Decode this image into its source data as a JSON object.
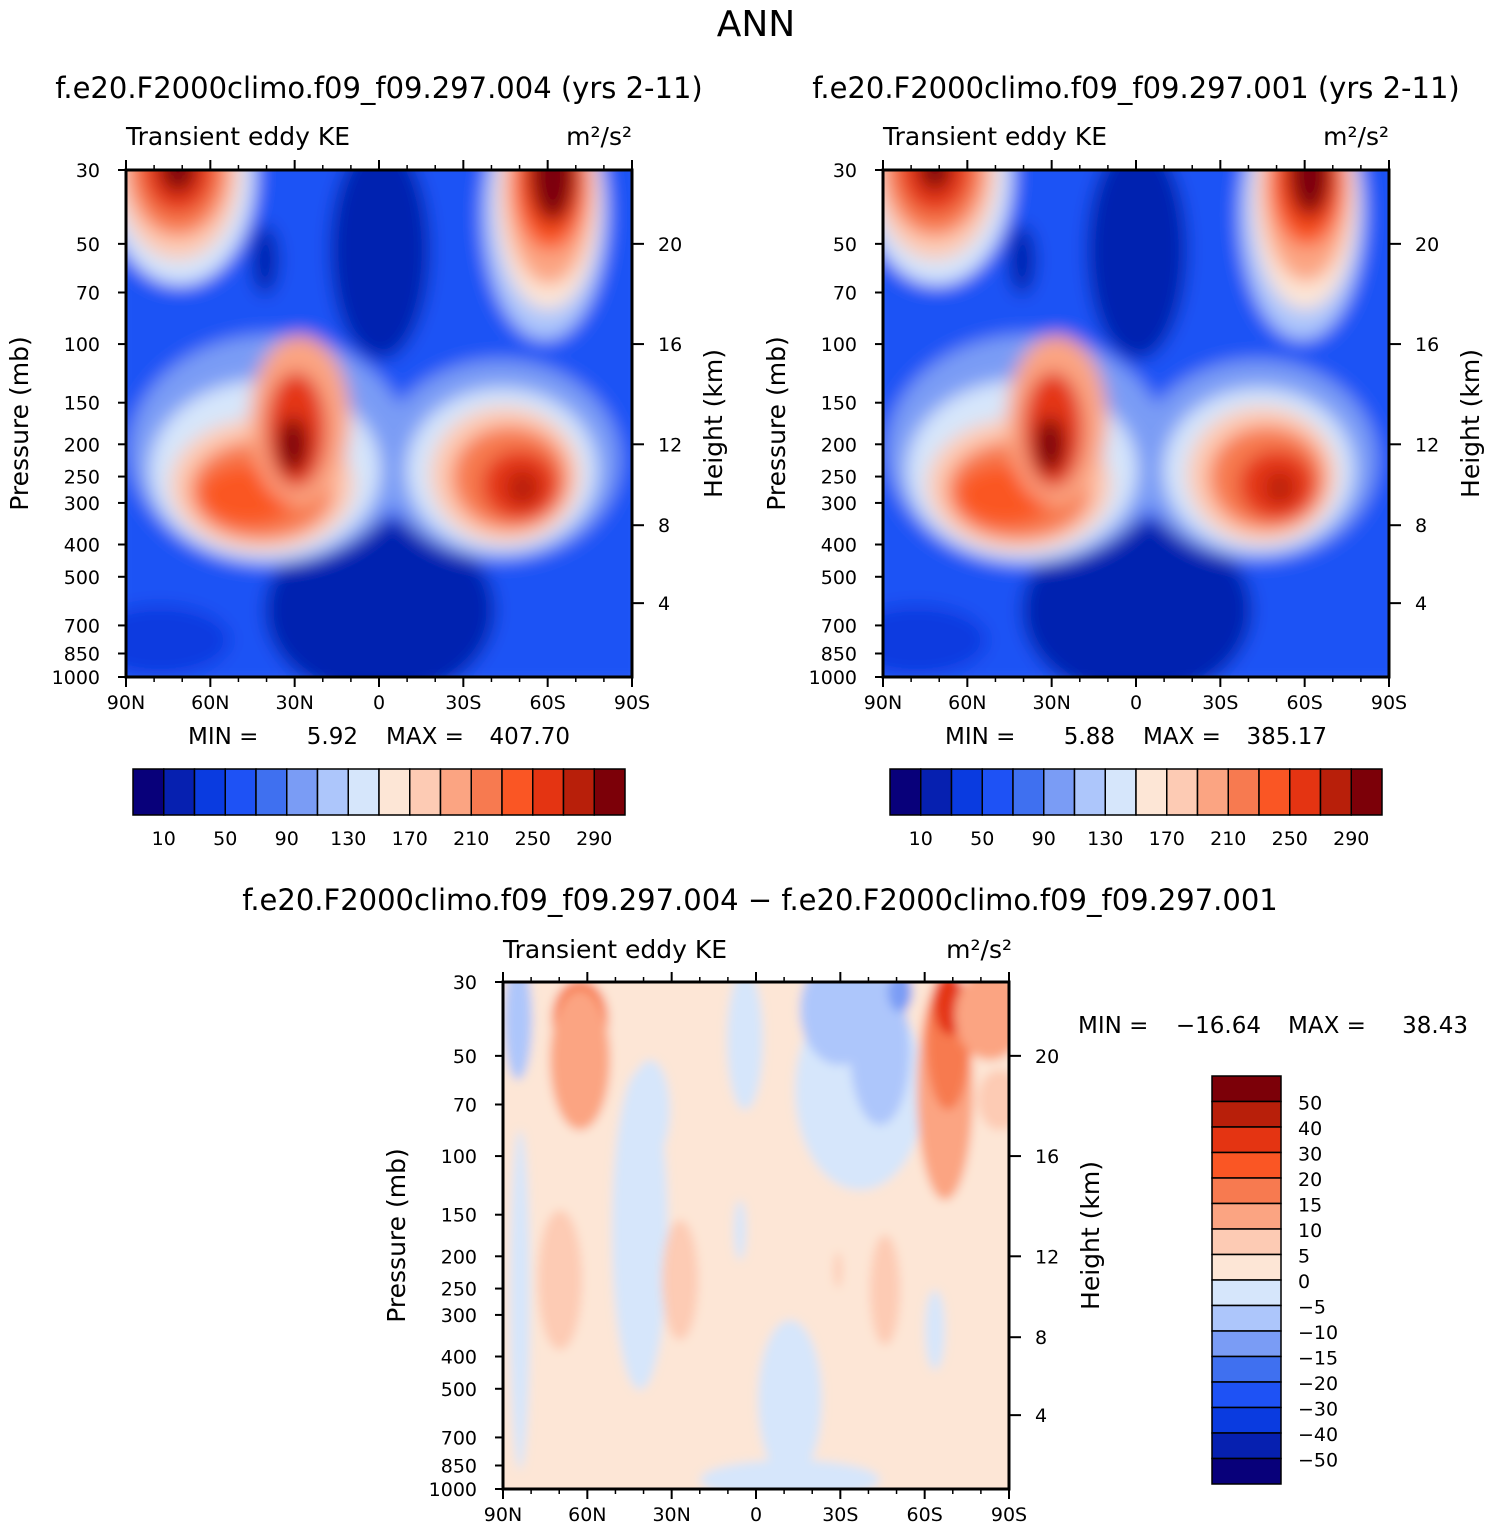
{
  "figure_title": "ANN",
  "colors": {
    "abs_palette": [
      "#08007a",
      "#0620b0",
      "#0a3be0",
      "#1e52f5",
      "#3f70f0",
      "#7a9cf5",
      "#adc6fb",
      "#d6e6fb",
      "#fde6d6",
      "#fdcbb4",
      "#fba482",
      "#f77a50",
      "#fa5624",
      "#e43412",
      "#b81f0a",
      "#7c0008"
    ],
    "diff_palette": [
      "#08007a",
      "#0620b0",
      "#0a3be0",
      "#1e52f5",
      "#3f70f0",
      "#7a9cf5",
      "#adc6fb",
      "#d6e6fb",
      "#fde6d6",
      "#fdcbb4",
      "#fba482",
      "#f77a50",
      "#fa5624",
      "#e43412",
      "#b81f0a",
      "#7c0008"
    ]
  },
  "panels": [
    {
      "id": "case",
      "title": "f.e20.F2000climo.f09_f09.297.004 (yrs 2-11)",
      "variable_label": "Transient eddy KE",
      "units_label": "m²/s²",
      "stats": {
        "min_label": "MIN =",
        "min": "5.92",
        "max_label": "MAX =",
        "max": "407.70"
      }
    },
    {
      "id": "control",
      "title": "f.e20.F2000climo.f09_f09.297.001 (yrs 2-11)",
      "variable_label": "Transient eddy KE",
      "units_label": "m²/s²",
      "stats": {
        "min_label": "MIN =",
        "min": "5.88",
        "max_label": "MAX =",
        "max": "385.17"
      }
    },
    {
      "id": "difference",
      "title": "f.e20.F2000climo.f09_f09.297.004 − f.e20.F2000climo.f09_f09.297.001",
      "variable_label": "Transient eddy KE",
      "units_label": "m²/s²",
      "stats": {
        "min_label": "MIN =",
        "min": "−16.64",
        "max_label": "MAX =",
        "max": "38.43"
      }
    }
  ],
  "chart_data": [
    {
      "type": "heatmap",
      "panel": "case",
      "x_ticks": [
        "90N",
        "60N",
        "30N",
        "0",
        "30S",
        "60S",
        "90S"
      ],
      "y_ticks": [
        "30",
        "50",
        "70",
        "100",
        "150",
        "200",
        "250",
        "300",
        "400",
        "500",
        "700",
        "850",
        "1000"
      ],
      "y_label": "Pressure (mb)",
      "y2_ticks": [
        "20",
        "16",
        "12",
        "8",
        "4"
      ],
      "y2_label": "Height (km)",
      "colorbar_labels": [
        "10",
        "50",
        "90",
        "130",
        "170",
        "210",
        "250",
        "290"
      ],
      "features": [
        {
          "lat": 30,
          "pressure": 200,
          "value": 290
        },
        {
          "lat": -50,
          "pressure": 280,
          "value": 280
        },
        {
          "lat": -60,
          "pressure": 30,
          "value": 407.7
        },
        {
          "lat": 70,
          "pressure": 30,
          "value": 300
        }
      ]
    },
    {
      "type": "heatmap",
      "panel": "control",
      "x_ticks": [
        "90N",
        "60N",
        "30N",
        "0",
        "30S",
        "60S",
        "90S"
      ],
      "y_ticks": [
        "30",
        "50",
        "70",
        "100",
        "150",
        "200",
        "250",
        "300",
        "400",
        "500",
        "700",
        "850",
        "1000"
      ],
      "y_label": "Pressure (mb)",
      "y2_ticks": [
        "20",
        "16",
        "12",
        "8",
        "4"
      ],
      "y2_label": "Height (km)",
      "colorbar_labels": [
        "10",
        "50",
        "90",
        "130",
        "170",
        "210",
        "250",
        "290"
      ],
      "features": [
        {
          "lat": 30,
          "pressure": 200,
          "value": 290
        },
        {
          "lat": -50,
          "pressure": 280,
          "value": 270
        },
        {
          "lat": -60,
          "pressure": 30,
          "value": 385.17
        },
        {
          "lat": 70,
          "pressure": 30,
          "value": 290
        }
      ]
    },
    {
      "type": "heatmap",
      "panel": "difference",
      "x_ticks": [
        "90N",
        "60N",
        "30N",
        "0",
        "30S",
        "60S",
        "90S"
      ],
      "y_ticks": [
        "30",
        "50",
        "70",
        "100",
        "150",
        "200",
        "250",
        "300",
        "400",
        "500",
        "700",
        "850",
        "1000"
      ],
      "y_label": "Pressure (mb)",
      "y2_ticks": [
        "20",
        "16",
        "12",
        "8",
        "4"
      ],
      "y2_label": "Height (km)",
      "colorbar_labels": [
        "50",
        "40",
        "30",
        "20",
        "15",
        "10",
        "5",
        "0",
        "−5",
        "−10",
        "−15",
        "−20",
        "−30",
        "−40",
        "−50"
      ],
      "features": [
        {
          "lat": -65,
          "pressure": 35,
          "value": 38.43
        },
        {
          "lat": 65,
          "pressure": 35,
          "value": 15
        },
        {
          "lat": -45,
          "pressure": 35,
          "value": -16.64
        }
      ]
    }
  ]
}
